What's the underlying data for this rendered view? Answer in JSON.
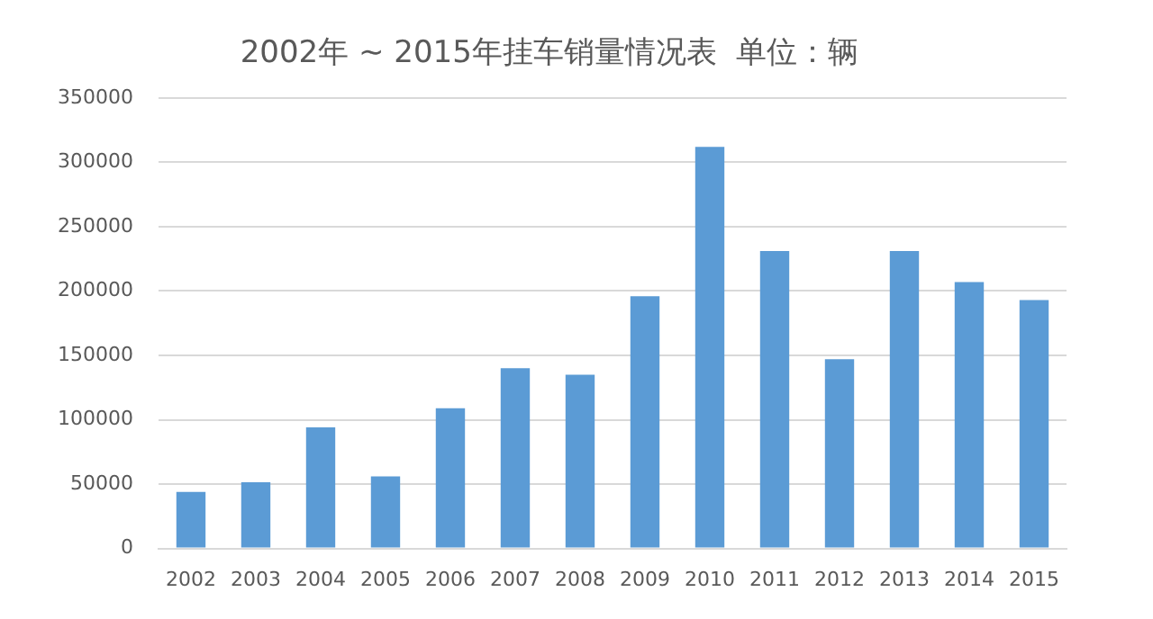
{
  "chart_data": {
    "type": "bar",
    "title": "2002年 ~ 2015年挂车销量情况表  单位：辆",
    "categories": [
      "2002",
      "2003",
      "2004",
      "2005",
      "2006",
      "2007",
      "2008",
      "2009",
      "2010",
      "2011",
      "2012",
      "2013",
      "2014",
      "2015"
    ],
    "values": [
      44000,
      51500,
      94000,
      56000,
      109000,
      140000,
      135000,
      196000,
      312000,
      231000,
      147000,
      231000,
      207000,
      193000
    ],
    "color": "#5b9bd5",
    "ylim": [
      0,
      350000
    ],
    "yticks": [
      0,
      50000,
      100000,
      150000,
      200000,
      250000,
      300000,
      350000
    ],
    "grid": "y",
    "legend": false
  }
}
